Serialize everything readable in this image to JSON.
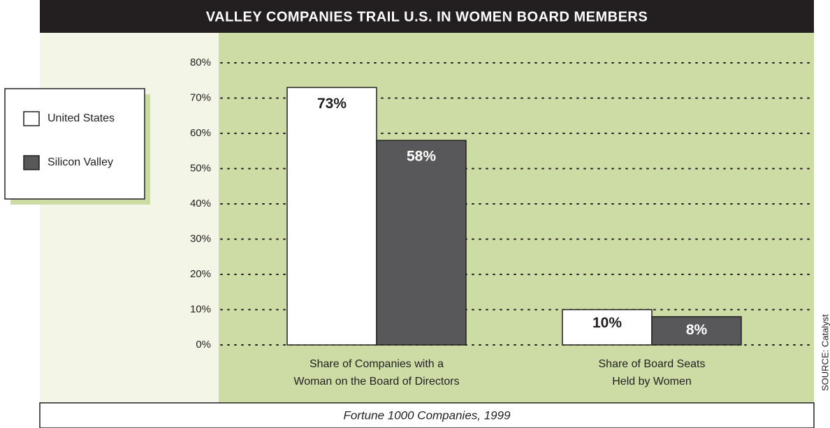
{
  "chart_data": {
    "type": "bar",
    "title": "VALLEY COMPANIES TRAIL U.S. IN WOMEN BOARD MEMBERS",
    "categories": [
      "Share of Companies with a\nWoman on the Board of Directors",
      "Share of Board Seats\nHeld by Women"
    ],
    "series": [
      {
        "name": "United States",
        "color": "#ffffff",
        "values": [
          73,
          10
        ],
        "value_labels": [
          "73%",
          "10%"
        ]
      },
      {
        "name": "Silicon Valley",
        "color": "#58585a",
        "values": [
          58,
          8
        ],
        "value_labels": [
          "58%",
          "8%"
        ]
      }
    ],
    "ylim": [
      0,
      80
    ],
    "yticks": [
      {
        "value": 0,
        "label": "0%"
      },
      {
        "value": 10,
        "label": "10%"
      },
      {
        "value": 20,
        "label": "20%"
      },
      {
        "value": 30,
        "label": "30%"
      },
      {
        "value": 40,
        "label": "40%"
      },
      {
        "value": 50,
        "label": "50%"
      },
      {
        "value": 60,
        "label": "60%"
      },
      {
        "value": 70,
        "label": "70%"
      },
      {
        "value": 80,
        "label": "80%"
      }
    ],
    "grid": true,
    "legend": "left",
    "subtitle": "Fortune 1000 Companies, 1999",
    "source": "SOURCE: Catalyst"
  }
}
